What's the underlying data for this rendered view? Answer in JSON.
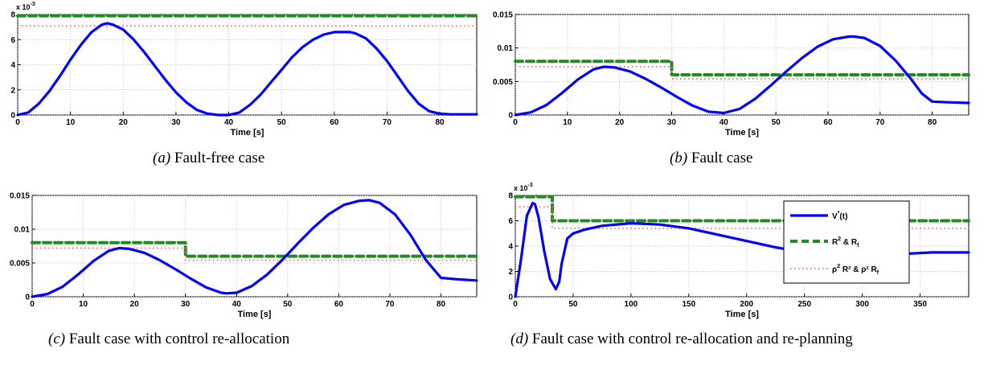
{
  "chart_data": [
    {
      "type": "line",
      "caption_tag": "(a)",
      "caption": "Fault-free case",
      "xlabel": "Time [s]",
      "ylabel": "",
      "xlim": [
        0,
        87
      ],
      "ylim": [
        0,
        8
      ],
      "y_scale_label": "x 10",
      "y_scale_exp": "-3",
      "xticks": [
        "0",
        "10",
        "20",
        "30",
        "40",
        "50",
        "60",
        "70",
        "80"
      ],
      "yticks": [
        "0",
        "2",
        "4",
        "6",
        "8"
      ],
      "grid": true,
      "series": [
        {
          "style": "solid",
          "color": "#0000ff",
          "x": [
            0,
            2,
            4,
            6,
            8,
            10,
            12,
            14,
            16,
            17,
            18,
            20,
            22,
            24,
            26,
            28,
            30,
            32,
            34,
            36,
            38,
            40,
            42,
            44,
            46,
            48,
            50,
            52,
            54,
            56,
            58,
            60,
            62,
            63,
            64,
            66,
            68,
            70,
            72,
            74,
            76,
            78,
            80,
            82,
            84,
            87
          ],
          "y": [
            0,
            0.2,
            0.9,
            1.9,
            3.1,
            4.4,
            5.6,
            6.6,
            7.2,
            7.3,
            7.2,
            6.8,
            6.0,
            5.0,
            3.9,
            2.8,
            1.8,
            1.0,
            0.4,
            0.1,
            0.0,
            0.0,
            0.2,
            0.8,
            1.6,
            2.6,
            3.6,
            4.6,
            5.4,
            6.0,
            6.4,
            6.6,
            6.6,
            6.6,
            6.5,
            6.1,
            5.3,
            4.3,
            3.1,
            1.9,
            0.9,
            0.3,
            0.1,
            0.05,
            0.05,
            0.05
          ]
        },
        {
          "style": "dashed",
          "color": "#228b22",
          "x": [
            0,
            87
          ],
          "y": [
            7.9,
            7.9
          ]
        },
        {
          "style": "dotted",
          "color": "#ff6666",
          "x": [
            0,
            87
          ],
          "y": [
            7.1,
            7.1
          ]
        }
      ]
    },
    {
      "type": "line",
      "caption_tag": "(b)",
      "caption": "Fault case",
      "xlabel": "Time [s]",
      "ylabel": "",
      "xlim": [
        0,
        87
      ],
      "ylim": [
        0,
        0.015
      ],
      "xticks": [
        "0",
        "10",
        "20",
        "30",
        "40",
        "50",
        "60",
        "70",
        "80"
      ],
      "yticks": [
        "0",
        "0.005",
        "0.01",
        "0.015"
      ],
      "grid": true,
      "series": [
        {
          "style": "solid",
          "color": "#0000ff",
          "x": [
            0,
            3,
            6,
            9,
            12,
            15,
            17,
            19,
            22,
            25,
            28,
            31,
            34,
            37,
            40,
            43,
            46,
            49,
            52,
            55,
            58,
            61,
            64,
            65,
            67,
            70,
            73,
            76,
            78,
            80,
            83,
            87
          ],
          "y": [
            0,
            0.0004,
            0.0015,
            0.0033,
            0.0053,
            0.0068,
            0.0072,
            0.0071,
            0.0065,
            0.0054,
            0.0041,
            0.0027,
            0.0014,
            0.0005,
            0.0003,
            0.0009,
            0.0024,
            0.0044,
            0.0065,
            0.0085,
            0.0102,
            0.0113,
            0.0117,
            0.0117,
            0.0115,
            0.0103,
            0.0081,
            0.0053,
            0.0032,
            0.002,
            0.0019,
            0.0018
          ]
        },
        {
          "style": "dashed",
          "color": "#228b22",
          "x": [
            0,
            30,
            30,
            87
          ],
          "y": [
            0.008,
            0.008,
            0.006,
            0.006
          ]
        },
        {
          "style": "dotted",
          "color": "#ff6666",
          "x": [
            0,
            30,
            30,
            87
          ],
          "y": [
            0.0072,
            0.0072,
            0.0054,
            0.0054
          ]
        }
      ]
    },
    {
      "type": "line",
      "caption_tag": "(c)",
      "caption": "Fault case with control re-allocation",
      "xlabel": "Time [s]",
      "ylabel": "",
      "xlim": [
        0,
        87
      ],
      "ylim": [
        0,
        0.015
      ],
      "xticks": [
        "0",
        "10",
        "20",
        "30",
        "40",
        "50",
        "60",
        "70",
        "80"
      ],
      "yticks": [
        "0",
        "0.005",
        "0.01",
        "0.015"
      ],
      "grid": true,
      "series": [
        {
          "style": "solid",
          "color": "#0000ff",
          "x": [
            0,
            3,
            6,
            9,
            12,
            15,
            17,
            19,
            22,
            25,
            28,
            31,
            34,
            37,
            38,
            40,
            43,
            46,
            49,
            52,
            55,
            58,
            61,
            64,
            66,
            68,
            71,
            74,
            77,
            80,
            83,
            87
          ],
          "y": [
            0,
            0.0004,
            0.0015,
            0.0033,
            0.0053,
            0.0068,
            0.0072,
            0.0071,
            0.0065,
            0.0054,
            0.0041,
            0.0027,
            0.0014,
            0.0006,
            0.0005,
            0.0006,
            0.0016,
            0.0033,
            0.0055,
            0.0079,
            0.0102,
            0.0122,
            0.0136,
            0.0142,
            0.0143,
            0.0139,
            0.0122,
            0.0092,
            0.0055,
            0.0028,
            0.0026,
            0.0024
          ]
        },
        {
          "style": "dashed",
          "color": "#228b22",
          "x": [
            0,
            30,
            30,
            87
          ],
          "y": [
            0.008,
            0.008,
            0.006,
            0.006
          ]
        },
        {
          "style": "dotted",
          "color": "#ff6666",
          "x": [
            0,
            30,
            30,
            87
          ],
          "y": [
            0.0072,
            0.0072,
            0.0054,
            0.0054
          ]
        }
      ]
    },
    {
      "type": "line",
      "caption_tag": "(d)",
      "caption": "Fault case with control re-allocation and re-planning",
      "xlabel": "Time [s]",
      "ylabel": "",
      "xlim": [
        0,
        392
      ],
      "ylim": [
        0,
        8
      ],
      "y_scale_label": "x 10",
      "y_scale_exp": "-3",
      "xticks": [
        "0",
        "50",
        "100",
        "150",
        "200",
        "250",
        "300",
        "350"
      ],
      "yticks": [
        "0",
        "2",
        "4",
        "6",
        "8"
      ],
      "grid": true,
      "legend_position": "top-right",
      "legend": [
        {
          "base": "V",
          "sup": "*",
          "tail": "(t)",
          "rest": ""
        },
        {
          "base": "R",
          "sup": "2",
          "tail": " & R",
          "rest": "f"
        },
        {
          "base": "ρ",
          "sup": "2",
          "tail": " R² & ρ² R",
          "rest": "f"
        }
      ],
      "series": [
        {
          "style": "solid",
          "color": "#0000ff",
          "x": [
            0,
            5,
            10,
            15,
            17,
            20,
            25,
            30,
            35,
            38,
            40,
            45,
            50,
            60,
            75,
            100,
            125,
            150,
            175,
            200,
            225,
            250,
            275,
            300,
            310,
            320,
            330,
            340,
            360,
            392
          ],
          "y": [
            0,
            3.0,
            6.4,
            7.4,
            7.3,
            6.3,
            3.6,
            1.4,
            0.6,
            1.2,
            2.6,
            4.6,
            5.0,
            5.3,
            5.6,
            5.8,
            5.7,
            5.4,
            4.9,
            4.4,
            3.9,
            3.5,
            3.2,
            3.0,
            3.0,
            3.1,
            3.3,
            3.4,
            3.5,
            3.5
          ]
        },
        {
          "style": "dashed",
          "color": "#228b22",
          "x": [
            0,
            32,
            32,
            392
          ],
          "y": [
            7.9,
            7.9,
            6.0,
            6.0
          ]
        },
        {
          "style": "dotted",
          "color": "#ff6666",
          "x": [
            0,
            32,
            32,
            392
          ],
          "y": [
            7.1,
            7.1,
            5.4,
            5.4
          ]
        }
      ]
    }
  ]
}
